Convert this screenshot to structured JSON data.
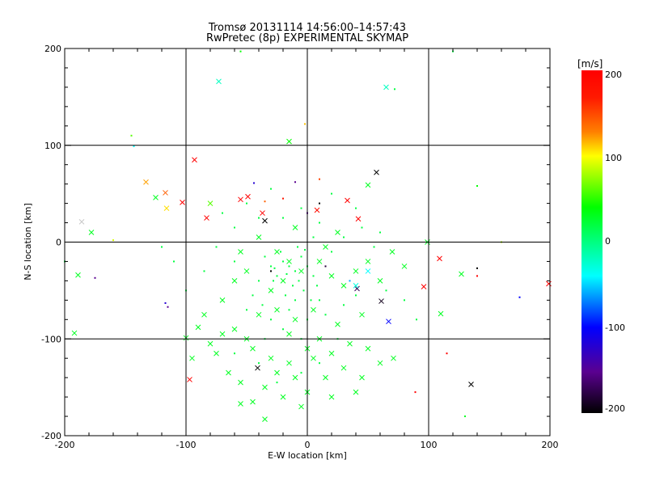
{
  "chart_data": {
    "type": "scatter",
    "title": "Tromsø 20131114 14:56:00–14:57:43",
    "subtitle": "RwPretec (8p) EXPERIMENTAL SKYMAP",
    "xlabel": "E-W location [km]",
    "ylabel": "N-S location [km]",
    "xlim": [
      -200,
      200
    ],
    "ylim": [
      -200,
      200
    ],
    "xticks": [
      "-200",
      "-100",
      "0",
      "100",
      "200"
    ],
    "yticks": [
      "-200",
      "-100",
      "0",
      "100",
      "200"
    ],
    "grid": true,
    "colorbar": {
      "label": "[m/s]",
      "range": [
        -200,
        200
      ],
      "ticks": [
        "200",
        "100",
        "0",
        "-100",
        "-200"
      ],
      "placement": "right"
    },
    "marker_legend": "points: [x_km, y_km, velocity_m_s, marker(0=dot,1=cross)]",
    "points": [
      [
        -93,
        85,
        200,
        1
      ],
      [
        -103,
        41,
        200,
        1
      ],
      [
        -83,
        25,
        200,
        1
      ],
      [
        -49,
        47,
        200,
        1
      ],
      [
        -55,
        44,
        200,
        1
      ],
      [
        -37,
        30,
        200,
        1
      ],
      [
        8,
        33,
        190,
        1
      ],
      [
        33,
        43,
        200,
        1
      ],
      [
        42,
        24,
        200,
        1
      ],
      [
        109,
        -17,
        200,
        1
      ],
      [
        96,
        -46,
        200,
        1
      ],
      [
        199,
        -43,
        200,
        1
      ],
      [
        -97,
        -142,
        200,
        1
      ],
      [
        -117,
        51,
        150,
        1
      ],
      [
        -133,
        62,
        130,
        1
      ],
      [
        -116,
        35,
        110,
        1
      ],
      [
        57,
        72,
        -200,
        1
      ],
      [
        -35,
        22,
        -200,
        1
      ],
      [
        41,
        -48,
        -170,
        1
      ],
      [
        135,
        -147,
        -200,
        1
      ],
      [
        -41,
        -130,
        -200,
        1
      ],
      [
        67,
        -82,
        -100,
        1
      ],
      [
        -73,
        166,
        -20,
        1
      ],
      [
        -15,
        104,
        40,
        1
      ],
      [
        61,
        -61,
        -190,
        1
      ],
      [
        -186,
        21,
        null,
        1
      ],
      [
        -125,
        46,
        30,
        1
      ],
      [
        -178,
        10,
        30,
        1
      ],
      [
        -189,
        -34,
        30,
        1
      ],
      [
        -192,
        -94,
        30,
        1
      ],
      [
        -100,
        -99,
        30,
        1
      ],
      [
        -55,
        -167,
        30,
        1
      ],
      [
        -35,
        -183,
        30,
        1
      ],
      [
        110,
        -74,
        30,
        1
      ],
      [
        127,
        -33,
        30,
        1
      ],
      [
        71,
        -120,
        30,
        1
      ],
      [
        50,
        59,
        30,
        1
      ],
      [
        99,
        0,
        30,
        1
      ],
      [
        50,
        -30,
        -40,
        1
      ],
      [
        40,
        -45,
        -30,
        1
      ],
      [
        -80,
        40,
        60,
        1
      ],
      [
        65,
        160,
        -20,
        1
      ],
      [
        -60,
        -90,
        30,
        1
      ],
      [
        -50,
        -100,
        30,
        1
      ],
      [
        -45,
        -110,
        30,
        1
      ],
      [
        -30,
        -120,
        30,
        1
      ],
      [
        -25,
        -135,
        30,
        1
      ],
      [
        -10,
        -140,
        30,
        1
      ],
      [
        -15,
        -125,
        30,
        1
      ],
      [
        0,
        -110,
        30,
        1
      ],
      [
        10,
        -100,
        30,
        1
      ],
      [
        20,
        -115,
        30,
        1
      ],
      [
        30,
        -130,
        30,
        1
      ],
      [
        35,
        -105,
        30,
        1
      ],
      [
        50,
        -110,
        30,
        1
      ],
      [
        60,
        -125,
        30,
        1
      ],
      [
        -80,
        -105,
        30,
        1
      ],
      [
        -90,
        -88,
        30,
        1
      ],
      [
        -75,
        -115,
        30,
        1
      ],
      [
        -70,
        -95,
        30,
        1
      ],
      [
        -40,
        -75,
        30,
        1
      ],
      [
        -25,
        -70,
        30,
        1
      ],
      [
        -10,
        -80,
        30,
        1
      ],
      [
        5,
        -70,
        30,
        1
      ],
      [
        -30,
        -50,
        30,
        1
      ],
      [
        -20,
        -40,
        30,
        1
      ],
      [
        -5,
        -30,
        30,
        1
      ],
      [
        -15,
        -20,
        30,
        1
      ],
      [
        -25,
        -10,
        30,
        1
      ],
      [
        10,
        -20,
        30,
        1
      ],
      [
        20,
        -35,
        30,
        1
      ],
      [
        30,
        -45,
        30,
        1
      ],
      [
        40,
        -30,
        30,
        1
      ],
      [
        50,
        -20,
        30,
        1
      ],
      [
        60,
        -40,
        30,
        1
      ],
      [
        -50,
        -30,
        30,
        1
      ],
      [
        -60,
        -40,
        30,
        1
      ],
      [
        -70,
        -60,
        30,
        1
      ],
      [
        -35,
        -150,
        30,
        1
      ],
      [
        -20,
        -160,
        30,
        1
      ],
      [
        0,
        -155,
        30,
        1
      ],
      [
        20,
        -160,
        30,
        1
      ],
      [
        45,
        -140,
        30,
        1
      ],
      [
        -5,
        -170,
        30,
        1
      ],
      [
        -45,
        -165,
        30,
        1
      ],
      [
        15,
        -5,
        30,
        1
      ],
      [
        25,
        10,
        30,
        1
      ],
      [
        -10,
        15,
        30,
        1
      ],
      [
        -40,
        5,
        30,
        1
      ],
      [
        -55,
        -10,
        30,
        1
      ],
      [
        70,
        -10,
        30,
        1
      ],
      [
        80,
        -25,
        30,
        1
      ],
      [
        -85,
        -75,
        30,
        1
      ],
      [
        -65,
        -135,
        30,
        1
      ],
      [
        -55,
        -145,
        30,
        1
      ],
      [
        -95,
        -120,
        30,
        1
      ],
      [
        5,
        -120,
        30,
        1
      ],
      [
        15,
        -140,
        30,
        1
      ],
      [
        40,
        -155,
        30,
        1
      ],
      [
        -15,
        -95,
        30,
        1
      ],
      [
        25,
        -85,
        30,
        1
      ],
      [
        45,
        -75,
        30,
        1
      ],
      [
        -20,
        -20,
        20,
        0
      ],
      [
        -15,
        -25,
        20,
        0
      ],
      [
        -10,
        -30,
        20,
        0
      ],
      [
        -5,
        -15,
        20,
        0
      ],
      [
        -25,
        -35,
        20,
        0
      ],
      [
        -30,
        -25,
        20,
        0
      ],
      [
        -12,
        -45,
        20,
        0
      ],
      [
        -8,
        -5,
        20,
        0
      ],
      [
        0,
        -25,
        20,
        0
      ],
      [
        5,
        -35,
        20,
        0
      ],
      [
        -18,
        -55,
        20,
        0
      ],
      [
        -22,
        -10,
        20,
        0
      ],
      [
        -35,
        -15,
        20,
        0
      ],
      [
        -28,
        -40,
        20,
        0
      ],
      [
        -3,
        -50,
        20,
        0
      ],
      [
        8,
        -45,
        20,
        0
      ],
      [
        -40,
        -40,
        20,
        0
      ],
      [
        -10,
        -60,
        20,
        0
      ],
      [
        -15,
        -70,
        20,
        0
      ],
      [
        -30,
        -80,
        20,
        0
      ],
      [
        -20,
        -90,
        20,
        0
      ],
      [
        -5,
        -100,
        20,
        0
      ],
      [
        10,
        -60,
        20,
        0
      ],
      [
        15,
        -75,
        20,
        0
      ],
      [
        -45,
        -55,
        20,
        0
      ],
      [
        -50,
        -70,
        20,
        0
      ],
      [
        -35,
        -100,
        20,
        0
      ],
      [
        -60,
        -115,
        20,
        0
      ],
      [
        -40,
        -125,
        20,
        0
      ],
      [
        -25,
        -145,
        20,
        0
      ],
      [
        -5,
        -135,
        20,
        0
      ],
      [
        10,
        -125,
        20,
        0
      ],
      [
        25,
        -100,
        20,
        0
      ],
      [
        30,
        -65,
        20,
        0
      ],
      [
        40,
        -55,
        20,
        0
      ],
      [
        20,
        -10,
        20,
        0
      ],
      [
        30,
        5,
        20,
        0
      ],
      [
        10,
        20,
        20,
        0
      ],
      [
        -5,
        35,
        20,
        0
      ],
      [
        -20,
        25,
        20,
        0
      ],
      [
        -40,
        25,
        20,
        0
      ],
      [
        -60,
        15,
        20,
        0
      ],
      [
        -75,
        -5,
        20,
        0
      ],
      [
        -85,
        -30,
        20,
        0
      ],
      [
        45,
        15,
        20,
        0
      ],
      [
        60,
        10,
        20,
        0
      ],
      [
        55,
        -5,
        20,
        0
      ],
      [
        65,
        -50,
        20,
        0
      ],
      [
        80,
        -60,
        20,
        0
      ],
      [
        -100,
        -50,
        20,
        0
      ],
      [
        -110,
        -20,
        20,
        0
      ],
      [
        -120,
        -5,
        20,
        0
      ],
      [
        90,
        -80,
        20,
        0
      ],
      [
        -70,
        30,
        20,
        0
      ],
      [
        -50,
        40,
        20,
        0
      ],
      [
        20,
        50,
        20,
        0
      ],
      [
        40,
        35,
        20,
        0
      ],
      [
        -30,
        55,
        20,
        0
      ],
      [
        0,
        -80,
        20,
        0
      ],
      [
        -60,
        -20,
        20,
        0
      ],
      [
        5,
        5,
        20,
        0
      ],
      [
        -2,
        -8,
        20,
        0
      ],
      [
        -17,
        -33,
        20,
        0
      ],
      [
        -27,
        -27,
        20,
        0
      ],
      [
        -7,
        -40,
        20,
        0
      ],
      [
        3,
        -60,
        20,
        0
      ],
      [
        -37,
        -65,
        20,
        0
      ],
      [
        140,
        58,
        40,
        0
      ],
      [
        -145,
        110,
        60,
        0
      ],
      [
        -55,
        197,
        40,
        0
      ],
      [
        120,
        197,
        20,
        0
      ],
      [
        72,
        158,
        20,
        0
      ],
      [
        -143,
        99,
        -40,
        0
      ],
      [
        -2,
        122,
        120,
        0
      ],
      [
        -117,
        -63,
        -120,
        0
      ],
      [
        -175,
        -37,
        -150,
        0
      ],
      [
        175,
        -57,
        -100,
        0
      ],
      [
        140,
        -27,
        -200,
        0
      ],
      [
        140,
        -35,
        200,
        0
      ],
      [
        89,
        -155,
        200,
        0
      ],
      [
        115,
        -115,
        200,
        0
      ],
      [
        -35,
        42,
        150,
        0
      ],
      [
        0,
        30,
        -150,
        0
      ],
      [
        10,
        40,
        -200,
        0
      ],
      [
        -10,
        62,
        -150,
        0
      ],
      [
        -44,
        61,
        -120,
        0
      ],
      [
        130,
        -180,
        30,
        0
      ],
      [
        160,
        0,
        80,
        0
      ],
      [
        -200,
        -20,
        20,
        0
      ],
      [
        -160,
        2,
        90,
        0
      ],
      [
        -115,
        -67,
        -150,
        0
      ],
      [
        -30,
        -30,
        -200,
        0
      ],
      [
        15,
        -25,
        -180,
        0
      ],
      [
        35,
        -40,
        -60,
        0
      ],
      [
        -20,
        45,
        180,
        0
      ],
      [
        10,
        65,
        160,
        0
      ]
    ]
  }
}
